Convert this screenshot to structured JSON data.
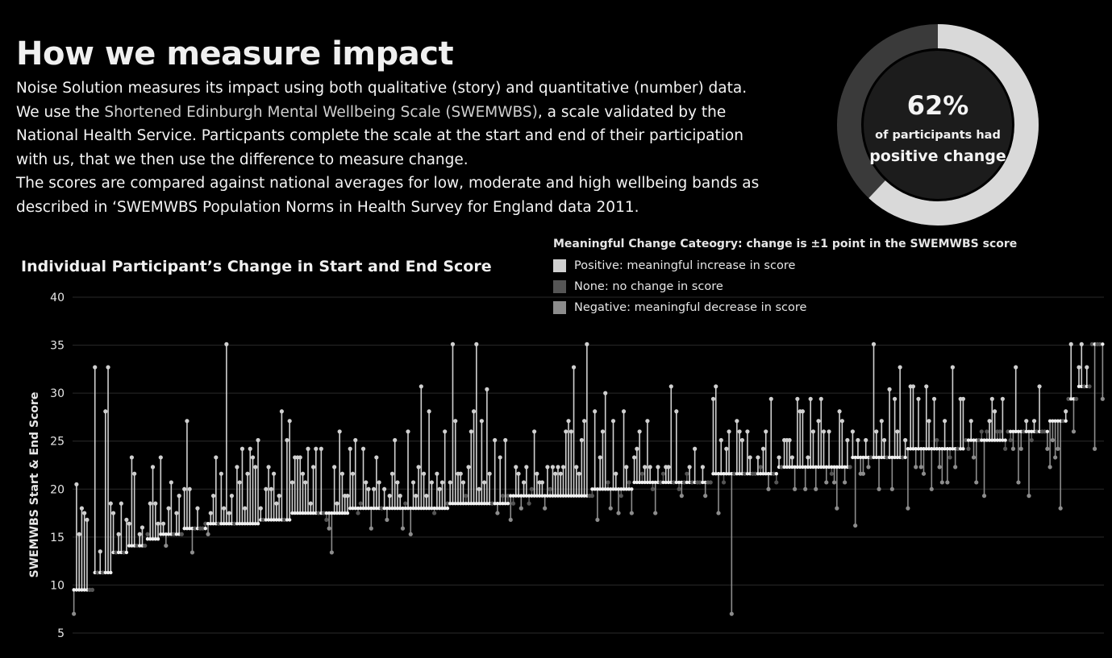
{
  "header": {
    "title": "How we measure impact",
    "intro_1a": "Noise Solution measures its impact using both qualitative (story) and quantitative (number) data. We use the ",
    "intro_link": "Shortened Edinburgh Mental Wellbeing Scale (SWEMWBS)",
    "intro_1b": ", a scale validated by the National Health Service. Particpants complete the scale at the start and end of their participation with us, that we then use the difference to measure change.",
    "intro_2": "The scores are compared against national averages for low, moderate and high wellbeing bands as described in ‘SWEMWBS Population Norms in Health Survey for England data 2011."
  },
  "kpi": {
    "value": "62%",
    "line1": "of participants had",
    "line2": "positive change",
    "fraction": 0.62
  },
  "legend": {
    "title": "Meaningful Change Cateogry:  change is ±1 point in the SWEMWBS score",
    "items": [
      {
        "label": "Positive: meaningful increase in score",
        "color": "#d0d0d0"
      },
      {
        "label": "None: no change in score",
        "color": "#555555"
      },
      {
        "label": "Negative: meaningful decrease in score",
        "color": "#8c8c8c"
      }
    ]
  },
  "chart_data": {
    "type": "dot-plot",
    "title": "Individual Participant’s Change in Start and End Score",
    "ylabel": "SWEMWBS Start & End Score",
    "ylim": [
      5,
      40
    ],
    "yticks": [
      5,
      10,
      15,
      20,
      25,
      30,
      35,
      40
    ],
    "groups": [
      {
        "start": 9.5,
        "ends": [
          7,
          20.5,
          15.3,
          18,
          17.5,
          16.8,
          9.5,
          9.5
        ]
      },
      {
        "start": 11.3,
        "ends": [
          32.7,
          11.3,
          13.5,
          11.3,
          28.1,
          32.7,
          18.5
        ]
      },
      {
        "start": 13.4,
        "ends": [
          17.5,
          13.4,
          15.3,
          18.5,
          13.4,
          16.8
        ]
      },
      {
        "start": 14.1,
        "ends": [
          16.4,
          23.3,
          21.6,
          14.1,
          15.3,
          16,
          14.1
        ]
      },
      {
        "start": 14.8,
        "ends": [
          15.3,
          18.5,
          22.3,
          18.5,
          16.4
        ]
      },
      {
        "start": 15.3,
        "ends": [
          23.3,
          16.4,
          14.1,
          18,
          20.7,
          15.3,
          17.5,
          19.3,
          15.3
        ]
      },
      {
        "start": 15.9,
        "ends": [
          20,
          27.1,
          20,
          13.4,
          15.9,
          18,
          15.9,
          15.9,
          16.4
        ]
      },
      {
        "start": 16.4,
        "ends": [
          15.3,
          17.5,
          19.3,
          23.3,
          16.4,
          21.6,
          18,
          35.1,
          17.5,
          19.3,
          16.4,
          22.3,
          20.7,
          24.2,
          18,
          21.6,
          24.2,
          23.3,
          22.3,
          25.1
        ]
      },
      {
        "start": 16.8,
        "ends": [
          18,
          16.8,
          20,
          22.3,
          20,
          21.6,
          18.5,
          19.3,
          28.1,
          16.8,
          25.1,
          27.1
        ]
      },
      {
        "start": 17.5,
        "ends": [
          20.7,
          23.3,
          23.3,
          23.3,
          21.6,
          20.7,
          24.2,
          18.5,
          22.3,
          24.2,
          17.5,
          24.2,
          17.5
        ]
      },
      {
        "start": 17.5,
        "ends": [
          16.8,
          15.9,
          13.4,
          22.3,
          18.5,
          26,
          21.6,
          19.3,
          19.3
        ]
      },
      {
        "start": 18,
        "ends": [
          24.2,
          21.6,
          25.1,
          17.5,
          18.5,
          24.2,
          20.7,
          20,
          15.9,
          20,
          23.3,
          20.7,
          18,
          20,
          16.8,
          19.3,
          21.6
        ]
      },
      {
        "start": 18,
        "ends": [
          25.1,
          20.7,
          19.3,
          15.9,
          18.5,
          26,
          15.3,
          20.7,
          19.3,
          22.3,
          30.7,
          21.6,
          19.3,
          28.1,
          20.7,
          17.5,
          21.6,
          20,
          20.7,
          26,
          18.5
        ]
      },
      {
        "start": 18.5,
        "ends": [
          20.7,
          35.1,
          27.1,
          21.6,
          21.6,
          20.7,
          19.3,
          22.3,
          26,
          28.1,
          35.1,
          20,
          27.1,
          20.7,
          30.4,
          21.6,
          18.5,
          25.1,
          17.5,
          23.3,
          19.3,
          25.1,
          19.3
        ]
      },
      {
        "start": 19.3,
        "ends": [
          16.8,
          18.5,
          22.3,
          21.6,
          18,
          20.7,
          22.3,
          18.5,
          20,
          26,
          21.6,
          20.7,
          20.7,
          18,
          22.3,
          20,
          22.3,
          21.6,
          22.3,
          21.6,
          22.3,
          26,
          27.1,
          26,
          32.7,
          22.3,
          21.6,
          25.1,
          27.1,
          35.1,
          19.3
        ]
      },
      {
        "start": 20,
        "ends": [
          19.3,
          28.1,
          16.8,
          23.3,
          26,
          30,
          20.7,
          18,
          27.1,
          21.6,
          17.5,
          19.3,
          28.1,
          22.3,
          20.7,
          17.5
        ]
      },
      {
        "start": 20.7,
        "ends": [
          23.3,
          24.2,
          26,
          21.6,
          22.3,
          27.1,
          22.3,
          20,
          17.5,
          22.3,
          20.7,
          21.6,
          22.3,
          22.3,
          30.7,
          20.7,
          28.1,
          20,
          19.3,
          20.7,
          21.6,
          22.3,
          20.7,
          24.2,
          20.7,
          20.7,
          22.3,
          19.3,
          20.7,
          20.7
        ]
      },
      {
        "start": 21.6,
        "ends": [
          29.4,
          30.7,
          17.5,
          25.1,
          20.7,
          24.2,
          26,
          7,
          21.6,
          27.1,
          26,
          25.1,
          21.6,
          26,
          23.3,
          21.6,
          21.6,
          23.3,
          22.3,
          24.2,
          26,
          20,
          29.4,
          21.6,
          20.7
        ]
      },
      {
        "start": 22.3,
        "ends": [
          23.3,
          22.3,
          25.1,
          25.1,
          25.1,
          23.3,
          20,
          29.4,
          28.1,
          28.1,
          20,
          23.3,
          29.4,
          26,
          20,
          27.1,
          29.4,
          26,
          20.7,
          26,
          21.6,
          20.7,
          18,
          28.1,
          27.1,
          20.7,
          25.1,
          22.3
        ]
      },
      {
        "start": 23.3,
        "ends": [
          26,
          16.2,
          25.1,
          21.6,
          21.6,
          25.1,
          22.3,
          23.3,
          35.1,
          26,
          20,
          27.1,
          25.1,
          23.3,
          30.4,
          20,
          29.4,
          26,
          32.7,
          23.3,
          25.1
        ]
      },
      {
        "start": 24.2,
        "ends": [
          18,
          30.7,
          30.7,
          22.3,
          29.4,
          22.3,
          21.6,
          30.7,
          27.1,
          20,
          29.4,
          25.1,
          22.3,
          20.7,
          27.1,
          20.7,
          23.3,
          32.7,
          22.3,
          24.2,
          29.4,
          29.4
        ]
      },
      {
        "start": 25.1,
        "ends": [
          25.1,
          24.2,
          27.1,
          23.3,
          20.7,
          25.1,
          26,
          19.3,
          26,
          27.1,
          29.4,
          28.1,
          26,
          26,
          29.4,
          24.2
        ]
      },
      {
        "start": 26,
        "ends": [
          26,
          25.1,
          24.2,
          32.7,
          20.7,
          24.2,
          26,
          27.1,
          19.3,
          25.1,
          27.1,
          26,
          30.7,
          26,
          26,
          24.2
        ]
      },
      {
        "start": 27.1,
        "ends": [
          22.3,
          25.1,
          23.3,
          24.2,
          18,
          27.1,
          28.1
        ]
      },
      {
        "start": 29.4,
        "ends": [
          29.4,
          35.1,
          26,
          29.4
        ]
      },
      {
        "start": 30.7,
        "ends": [
          32.7,
          35.1,
          30.7,
          32.7,
          30.7
        ]
      },
      {
        "start": 35.1,
        "ends": [
          35.1,
          24.2,
          35.1,
          35.1,
          29.4
        ]
      }
    ]
  }
}
